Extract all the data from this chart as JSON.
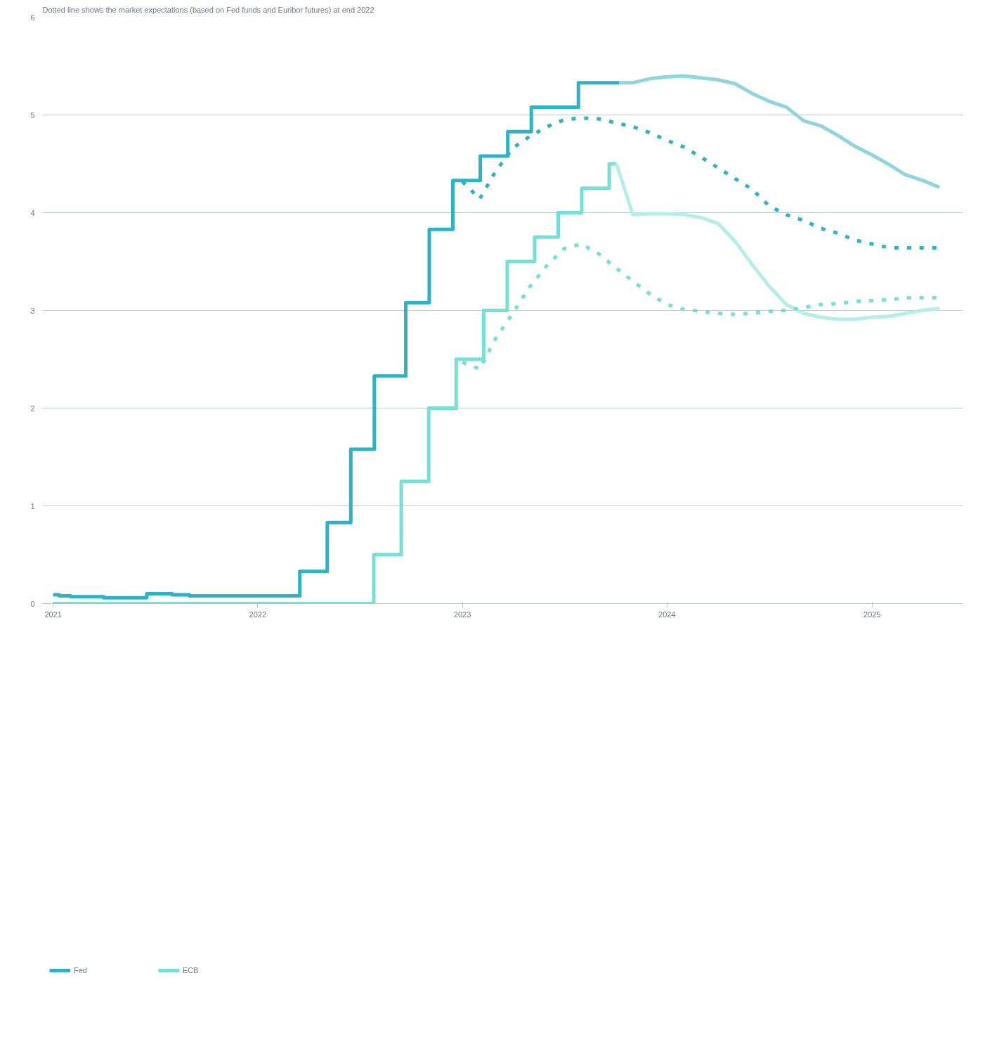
{
  "chart_data": {
    "type": "line",
    "subtitle": "Dotted line shows the market expectations (based on Fed funds and Euribor futures) at end 2022",
    "xlim": [
      "2020-12-13",
      "2025-06-12"
    ],
    "xticks": [
      {
        "value": "2021-01-01",
        "label": "2021"
      },
      {
        "value": "2022-01-01",
        "label": "2022"
      },
      {
        "value": "2023-01-01",
        "label": "2023"
      },
      {
        "value": "2024-01-01",
        "label": "2024"
      },
      {
        "value": "2025-01-01",
        "label": "2025"
      }
    ],
    "ylim": [
      0,
      6
    ],
    "yticks": [
      0,
      1,
      2,
      3,
      4,
      5,
      6
    ],
    "grid": "y",
    "legend": "bottom",
    "series": [
      {
        "name": "Fed",
        "type": "step",
        "color": "#2db3c4",
        "line_style": "solid",
        "x": [
          "2021-01-01",
          "2021-01-12",
          "2021-02-01",
          "2021-03-01",
          "2021-04-01",
          "2021-05-01",
          "2021-06-17",
          "2021-08-01",
          "2021-09-01",
          "2022-03-17",
          "2022-05-05",
          "2022-06-16",
          "2022-07-28",
          "2022-09-22",
          "2022-11-03",
          "2022-12-15",
          "2023-02-02",
          "2023-03-23",
          "2023-05-04",
          "2023-07-27",
          "2023-10-08"
        ],
        "values": [
          0.09,
          0.08,
          0.07,
          0.07,
          0.06,
          0.06,
          0.1,
          0.09,
          0.08,
          0.33,
          0.83,
          1.58,
          2.33,
          3.08,
          3.83,
          4.33,
          4.58,
          4.83,
          5.08,
          5.33,
          5.33
        ]
      },
      {
        "name": "ECB",
        "type": "step",
        "color": "#74e0d6",
        "line_style": "solid",
        "x": [
          "2021-01-01",
          "2022-07-27",
          "2022-09-14",
          "2022-11-02",
          "2022-12-21",
          "2023-02-08",
          "2023-03-22",
          "2023-05-10",
          "2023-06-21",
          "2023-08-02",
          "2023-09-20",
          "2023-10-03"
        ],
        "values": [
          0,
          0.5,
          1.25,
          2.0,
          2.5,
          3.0,
          3.5,
          3.75,
          4.0,
          4.25,
          4.5,
          4.5
        ]
      },
      {
        "color": "#90d5de",
        "line_style": "solid",
        "x": [
          "2023-10-08",
          "2023-11",
          "2023-12",
          "2024-01",
          "2024-02",
          "2024-03",
          "2024-04",
          "2024-05",
          "2024-06",
          "2024-07",
          "2024-08",
          "2024-09",
          "2024-10",
          "2024-11",
          "2024-12",
          "2025-01",
          "2025-02",
          "2025-03",
          "2025-04",
          "2025-05"
        ],
        "values": [
          5.33,
          5.33,
          5.37,
          5.39,
          5.4,
          5.38,
          5.36,
          5.32,
          5.22,
          5.14,
          5.08,
          4.94,
          4.89,
          4.79,
          4.68,
          4.59,
          4.49,
          4.39,
          4.33,
          4.26
        ]
      },
      {
        "color": "#b5ede8",
        "line_style": "solid",
        "x": [
          "2023-10-03",
          "2023-11",
          "2023-12",
          "2024-01",
          "2024-02",
          "2024-03",
          "2024-04",
          "2024-05",
          "2024-06",
          "2024-07",
          "2024-08",
          "2024-09",
          "2024-10",
          "2024-11",
          "2024-12",
          "2025-01",
          "2025-02",
          "2025-03",
          "2025-04",
          "2025-05"
        ],
        "values": [
          4.5,
          3.98,
          3.99,
          3.99,
          3.98,
          3.95,
          3.89,
          3.71,
          3.47,
          3.25,
          3.06,
          2.97,
          2.93,
          2.91,
          2.91,
          2.93,
          2.94,
          2.97,
          3.0,
          3.02
        ]
      },
      {
        "color": "#2db3c4",
        "line_style": "dotted",
        "x": [
          "2023-01",
          "2023-02",
          "2023-03",
          "2023-04",
          "2023-05",
          "2023-06",
          "2023-07",
          "2023-08",
          "2023-09",
          "2023-10",
          "2023-11",
          "2023-12",
          "2024-01",
          "2024-02",
          "2024-03",
          "2024-04",
          "2024-05",
          "2024-06",
          "2024-07",
          "2024-08",
          "2024-09",
          "2024-10",
          "2024-11",
          "2024-12",
          "2025-01",
          "2025-02",
          "2025-03",
          "2025-04",
          "2025-05"
        ],
        "values": [
          4.32,
          4.14,
          4.42,
          4.66,
          4.78,
          4.88,
          4.95,
          4.97,
          4.96,
          4.92,
          4.88,
          4.82,
          4.74,
          4.67,
          4.57,
          4.46,
          4.35,
          4.24,
          4.07,
          3.98,
          3.92,
          3.84,
          3.79,
          3.72,
          3.68,
          3.64,
          3.64,
          3.64,
          3.64
        ]
      },
      {
        "color": "#74e0d6",
        "line_style": "dotted",
        "x": [
          "2023-01",
          "2023-02",
          "2023-03",
          "2023-04",
          "2023-05",
          "2023-06",
          "2023-07",
          "2023-08",
          "2023-09",
          "2023-10",
          "2023-11",
          "2023-12",
          "2024-01",
          "2024-02",
          "2024-03",
          "2024-04",
          "2024-05",
          "2024-06",
          "2024-07",
          "2024-08",
          "2024-09",
          "2024-10",
          "2024-11",
          "2024-12",
          "2025-01",
          "2025-02",
          "2025-03",
          "2025-04",
          "2025-05"
        ],
        "values": [
          2.47,
          2.4,
          2.71,
          2.97,
          3.24,
          3.46,
          3.63,
          3.68,
          3.58,
          3.44,
          3.3,
          3.17,
          3.06,
          3.01,
          2.99,
          2.97,
          2.96,
          2.97,
          2.99,
          3.0,
          3.03,
          3.06,
          3.07,
          3.09,
          3.1,
          3.11,
          3.13,
          3.13,
          3.13
        ]
      }
    ]
  }
}
